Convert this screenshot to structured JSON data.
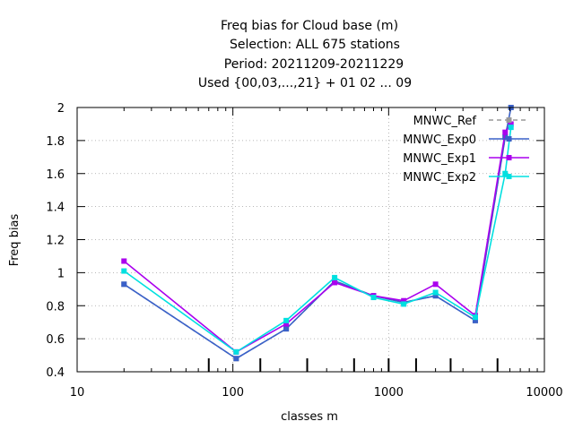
{
  "chart_data": {
    "type": "line",
    "title_lines": [
      "Freq bias  for Cloud base (m)",
      "Selection: ALL    675 stations",
      "Period: 20211209-20211229",
      "Used {00,03,...,21} + 01 02 ... 09"
    ],
    "xlabel": "classes m",
    "ylabel": "Freq bias",
    "x_scale": "log",
    "xlim": [
      10,
      10000
    ],
    "ylim": [
      0.4,
      2
    ],
    "x_ticks": [
      10,
      100,
      1000,
      10000
    ],
    "x_tick_labels": [
      "10",
      "100",
      "1000",
      "10000"
    ],
    "y_ticks": [
      0.4,
      0.6,
      0.8,
      1.0,
      1.2,
      1.4,
      1.6,
      1.8,
      2.0
    ],
    "y_tick_labels": [
      "0.4",
      "0.6",
      "0.8",
      "1",
      "1.2",
      "1.4",
      "1.6",
      "1.8",
      "2"
    ],
    "grid": true,
    "legend_position": "top-right",
    "class_markers_x": [
      70,
      150,
      300,
      600,
      1000,
      1500,
      2500,
      5000
    ],
    "x": [
      20,
      105,
      220,
      450,
      800,
      1250,
      2000,
      3600,
      5600,
      6100
    ],
    "series": [
      {
        "name": "MNWC_Ref",
        "color": "#999999",
        "dashed": true,
        "marker": "square",
        "values": [
          0.93,
          0.48,
          0.66,
          0.95,
          0.86,
          0.82,
          0.86,
          0.71,
          1.82,
          2.0
        ]
      },
      {
        "name": "MNWC_Exp0",
        "color": "#3a61c9",
        "dashed": false,
        "marker": "square",
        "values": [
          0.93,
          0.48,
          0.66,
          0.95,
          0.86,
          0.82,
          0.86,
          0.71,
          1.82,
          2.0
        ]
      },
      {
        "name": "MNWC_Exp1",
        "color": "#aa00ee",
        "dashed": false,
        "marker": "square",
        "values": [
          1.07,
          0.52,
          0.69,
          0.94,
          0.86,
          0.83,
          0.93,
          0.74,
          1.85,
          1.9
        ]
      },
      {
        "name": "MNWC_Exp2",
        "color": "#00e0e0",
        "dashed": false,
        "marker": "square",
        "values": [
          1.01,
          0.52,
          0.71,
          0.97,
          0.85,
          0.81,
          0.88,
          0.73,
          1.6,
          1.88
        ]
      }
    ]
  }
}
